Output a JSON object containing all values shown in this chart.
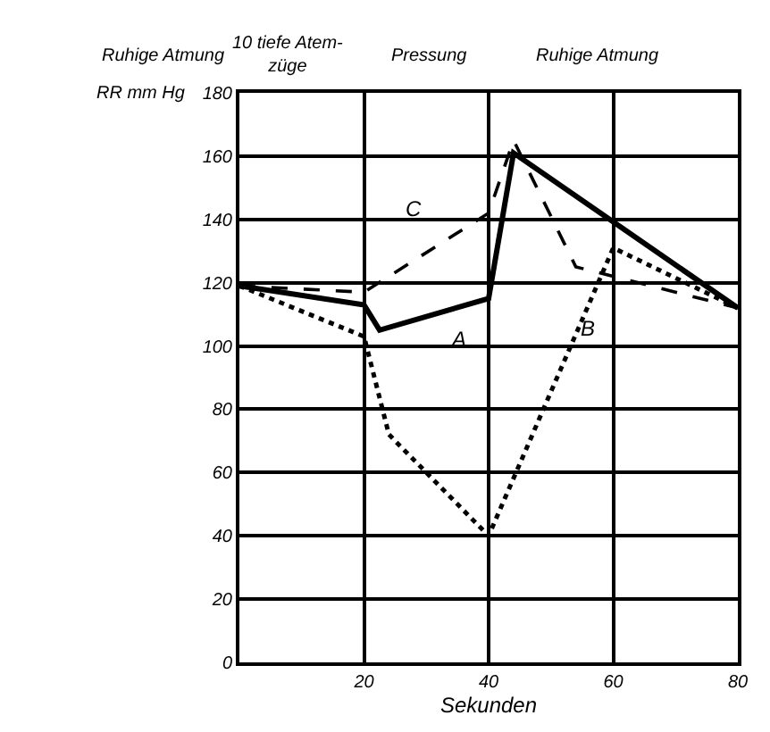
{
  "chart_data": {
    "type": "line",
    "xlabel": "Sekunden",
    "ylabel": "RR mm Hg",
    "annotations": [
      "Ruhige Atmung",
      "10 tiefe Atem-\nzüge",
      "Pressung",
      "Ruhige Atmung"
    ],
    "series": [
      {
        "name": "A",
        "color": "#000000",
        "line_style": "solid",
        "x": [
          0,
          20,
          22.5,
          40,
          44,
          80
        ],
        "values": [
          119,
          113,
          105,
          115,
          161,
          112
        ]
      },
      {
        "name": "B",
        "color": "#000000",
        "line_style": "dotted",
        "x": [
          0,
          20,
          24,
          40,
          60,
          80
        ],
        "values": [
          119,
          103,
          72,
          40,
          131,
          112
        ]
      },
      {
        "name": "C",
        "color": "#000000",
        "line_style": "dashed",
        "x": [
          0,
          20,
          40,
          44,
          54,
          80
        ],
        "values": [
          119,
          117,
          142,
          165,
          125,
          112
        ]
      }
    ],
    "xlim": [
      0,
      80
    ],
    "ylim": [
      0,
      180
    ],
    "xticks": [
      20,
      40,
      60,
      80
    ],
    "yticks": [
      0,
      20,
      40,
      60,
      80,
      100,
      120,
      140,
      160,
      180
    ],
    "grid": true,
    "legend": false,
    "marker": "none"
  }
}
